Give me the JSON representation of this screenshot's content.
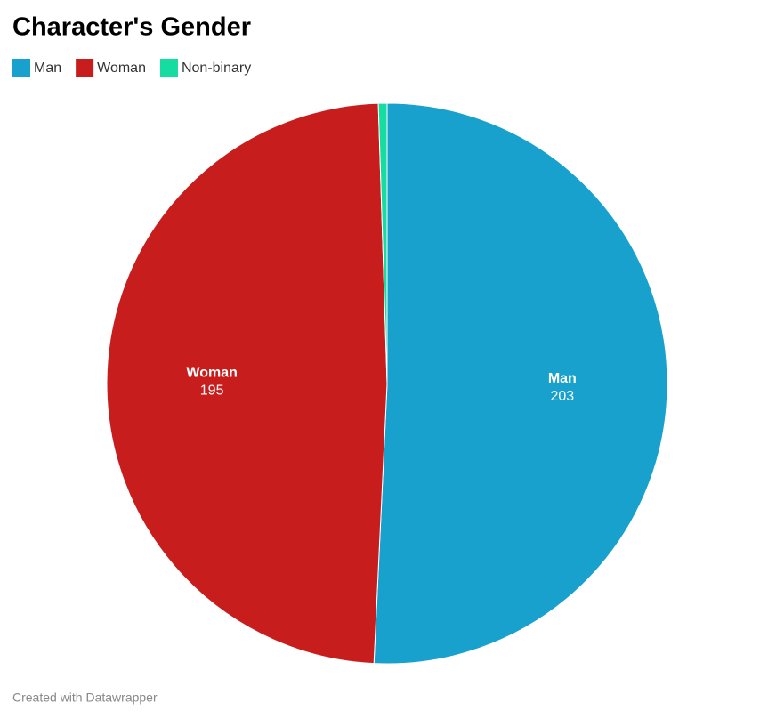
{
  "chart_data": {
    "type": "pie",
    "title": "Character's Gender",
    "categories": [
      "Man",
      "Woman",
      "Non-binary"
    ],
    "values": [
      203,
      195,
      2
    ],
    "colors": [
      "#18a1cd",
      "#c71e1d",
      "#15dda1"
    ],
    "legend": "top-left",
    "footer": "Created with Datawrapper"
  }
}
